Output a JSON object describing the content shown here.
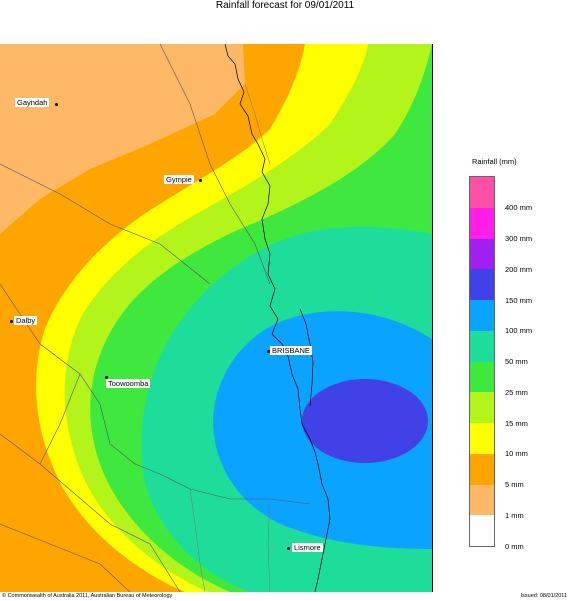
{
  "title": "Rainfall forecast for 09/01/2011",
  "legend": {
    "title": "Rainfall (mm)",
    "bands": [
      {
        "label": "",
        "color": "#ff4fa6"
      },
      {
        "label": "400 mm",
        "color": "#ff1ee8"
      },
      {
        "label": "300 mm",
        "color": "#a020f0"
      },
      {
        "label": "200 mm",
        "color": "#4141e8"
      },
      {
        "label": "150 mm",
        "color": "#0aa3ff"
      },
      {
        "label": "100 mm",
        "color": "#1edd9a"
      },
      {
        "label": "50 mm",
        "color": "#3ee83e"
      },
      {
        "label": "25 mm",
        "color": "#b3f51a"
      },
      {
        "label": "15 mm",
        "color": "#ffff00"
      },
      {
        "label": "10 mm",
        "color": "#ffa500"
      },
      {
        "label": "5 mm",
        "color": "#ffb866"
      },
      {
        "label": "1 mm",
        "color": "#ffffff"
      }
    ],
    "bottom_label": "0 mm"
  },
  "places": [
    {
      "name": "Gayndah"
    },
    {
      "name": "Gympie"
    },
    {
      "name": "Dalby"
    },
    {
      "name": "Toowoomba"
    },
    {
      "name": "BRISBANE"
    },
    {
      "name": "Lismore"
    }
  ],
  "footer": {
    "copyright": "© Commonwealth of Australia 2011, Australian Bureau of Meteorology",
    "issued": "Issued: 08/01/2011"
  }
}
